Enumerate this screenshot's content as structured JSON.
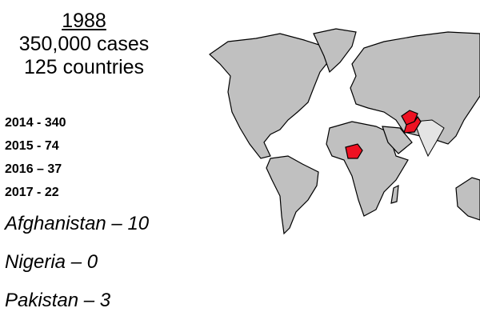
{
  "summary": {
    "year": "1988",
    "cases": "350,000 cases",
    "countries": "125 countries"
  },
  "yearly_cases": [
    {
      "label": "2014 - 340"
    },
    {
      "label": "2015 - 74"
    },
    {
      "label": "2016 – 37"
    },
    {
      "label": "2017 - 22"
    }
  ],
  "country_cases": [
    {
      "label": "Afghanistan – 10"
    },
    {
      "label": "Nigeria – 0"
    },
    {
      "label": "Pakistan – 3"
    }
  ],
  "map": {
    "endemic_color": "#ee1122",
    "land_color": "#c0c0c0",
    "highlighted": [
      "Afghanistan",
      "Pakistan",
      "Nigeria"
    ]
  }
}
